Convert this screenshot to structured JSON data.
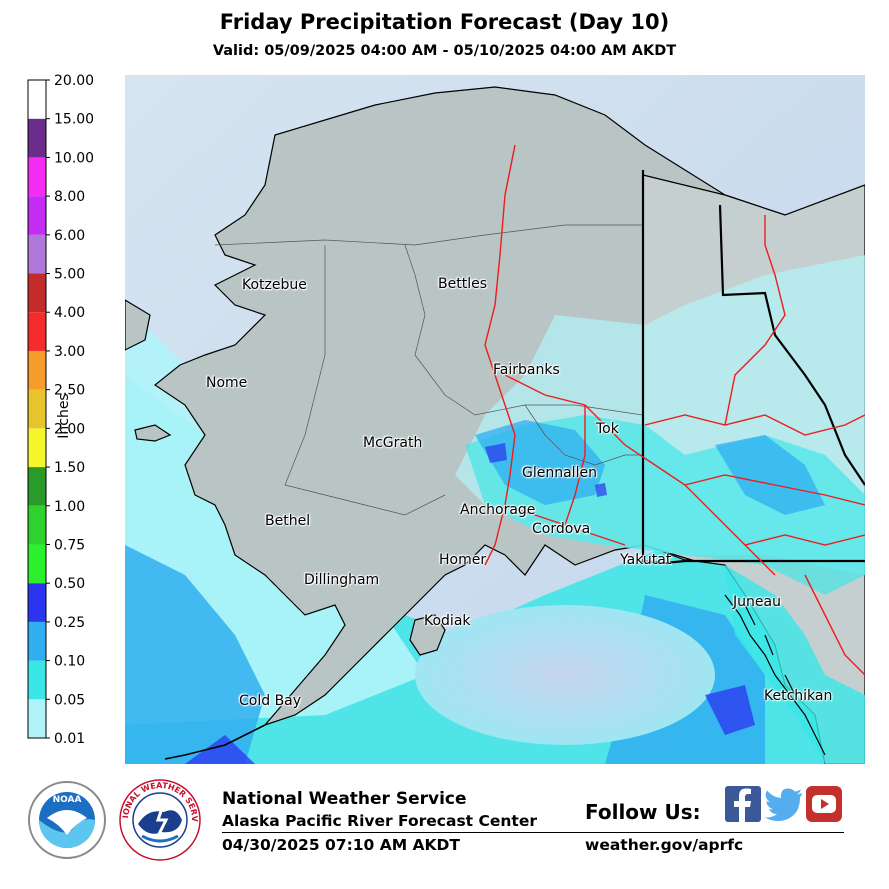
{
  "header": {
    "title": "Friday Precipitation Forecast (Day 10)",
    "valid": "Valid: 05/09/2025 04:00 AM - 05/10/2025 04:00 AM AKDT"
  },
  "colorbar": {
    "label": "Inches",
    "levels": [
      "0.01",
      "0.05",
      "0.10",
      "0.25",
      "0.50",
      "0.75",
      "1.00",
      "1.50",
      "2.00",
      "2.50",
      "3.00",
      "4.00",
      "5.00",
      "6.00",
      "8.00",
      "10.00",
      "15.00",
      "20.00"
    ],
    "colors": [
      "#b0f4fa",
      "#3ae6e6",
      "#30aef0",
      "#2c34f0",
      "#2cf02c",
      "#2ed12e",
      "#2a9b2a",
      "#f6f62c",
      "#e8c42c",
      "#f59c2c",
      "#f42c2c",
      "#c42c2c",
      "#ae78d8",
      "#c42cf4",
      "#f42cf4",
      "#6c2c8c",
      "#ffffff"
    ]
  },
  "map": {
    "cities": [
      {
        "name": "Kotzebue"
      },
      {
        "name": "Bettles"
      },
      {
        "name": "Nome"
      },
      {
        "name": "Fairbanks"
      },
      {
        "name": "Tok"
      },
      {
        "name": "McGrath"
      },
      {
        "name": "Glennallen"
      },
      {
        "name": "Anchorage"
      },
      {
        "name": "Cordova"
      },
      {
        "name": "Bethel"
      },
      {
        "name": "Homer"
      },
      {
        "name": "Yakutat"
      },
      {
        "name": "Dillingham"
      },
      {
        "name": "Juneau"
      },
      {
        "name": "Kodiak"
      },
      {
        "name": "Ketchikan"
      },
      {
        "name": "Cold Bay"
      }
    ]
  },
  "footer": {
    "agency": "National Weather Service",
    "office": "Alaska Pacific River Forecast Center",
    "issued": "04/30/2025 07:10 AM AKDT",
    "follow": "Follow Us:",
    "website": "weather.gov/aprfc",
    "noaa_logo_text": "NOAA",
    "nws_logo_text": "NATIONAL WEATHER SERVICE",
    "social_icons": [
      "facebook-icon",
      "twitter-icon",
      "youtube-icon"
    ]
  }
}
